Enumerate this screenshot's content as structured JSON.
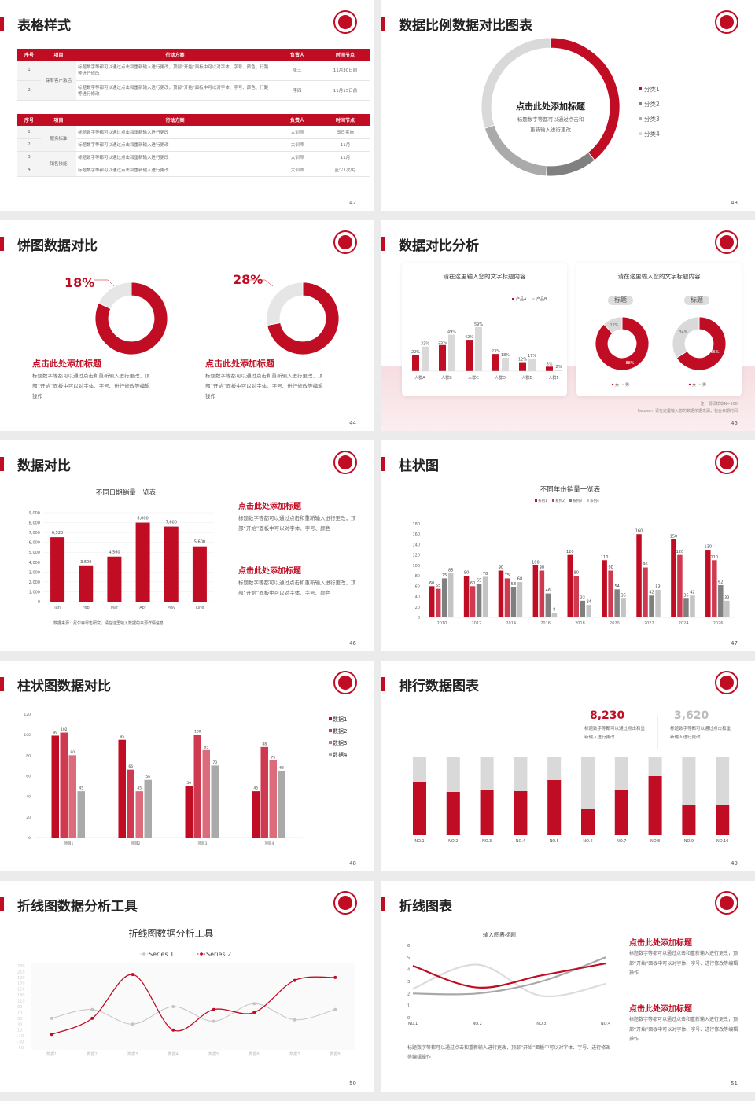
{
  "colors": {
    "accent": "#c00d23",
    "red2": "#d03a50",
    "red3": "#dc6c7b",
    "gray_dark": "#808080",
    "gray": "#aaaaaa",
    "gray_light": "#d9d9d9"
  },
  "logo_icon": "circular-seal-logo",
  "s42": {
    "title": "表格样式",
    "page": "42",
    "headers": [
      "序号",
      "项目",
      "行动方案",
      "负责人",
      "时间节点"
    ],
    "t1": {
      "group": "保有客户激活",
      "rows": [
        [
          "1",
          "标题数字等都可以通过点击和重新输入进行更改，顶部“开始”面板中可以对字体、字号、颜色、行距等进行修改",
          "张三",
          "11月30日前"
        ],
        [
          "2",
          "标题数字等都可以通过点击和重新输入进行更改，顶部“开始”面板中可以对字体、字号、颜色、行距等进行修改",
          "李四",
          "11月15日前"
        ]
      ]
    },
    "t2": {
      "groups": [
        "服务标准",
        "销售技能"
      ],
      "rows": [
        [
          "1",
          "标题数字等都可以通过点击和重新输入进行更改",
          "大训师",
          "即日实施"
        ],
        [
          "2",
          "标题数字等都可以通过点击和重新输入进行更改",
          "大训师",
          "11月"
        ],
        [
          "3",
          "标题数字等都可以通过点击和重新输入进行更改",
          "大训师",
          "11月"
        ],
        [
          "4",
          "标题数字等都可以通过点击和重新输入进行更改",
          "大训师",
          "至少1次/月"
        ]
      ]
    }
  },
  "s43": {
    "title": "数据比例数据对比图表",
    "page": "43",
    "center_title": "点击此处添加标题",
    "center_text1": "标题数字等都可以通过点击和",
    "center_text2": "重新输入进行更改",
    "chart_data": {
      "type": "pie",
      "donut": true,
      "categories": [
        "分类1",
        "分类2",
        "分类3",
        "分类4"
      ],
      "values": [
        39,
        12,
        19,
        30
      ],
      "colors": [
        "#c00d23",
        "#808080",
        "#aaaaaa",
        "#d9d9d9"
      ]
    }
  },
  "s44": {
    "title": "饼图数据对比",
    "page": "44",
    "items": [
      {
        "pct_label": "18%",
        "heading": "点击此处添加标题",
        "text": "标题数字等都可以通过点击和重新输入进行更改，顶部“开始”面板中可以对字体、字号、进行修改等编辑操作"
      },
      {
        "pct_label": "28%",
        "heading": "点击此处添加标题",
        "text": "标题数字等都可以通过点击和重新输入进行更改，顶部“开始”面板中可以对字体、字号、进行修改等编辑操作"
      }
    ],
    "chart_data": [
      {
        "type": "pie",
        "donut": true,
        "values": [
          18,
          82
        ]
      },
      {
        "type": "pie",
        "donut": true,
        "values": [
          28,
          72
        ]
      }
    ]
  },
  "s45": {
    "title": "数据对比分析",
    "page": "45",
    "card1_title": "请在这里输入您的文字标题内容",
    "card2_title": "请在这里输入您的文字标题内容",
    "pill1": "标题",
    "pill2": "标题",
    "note": "注：调研样本N=500",
    "source": "Source：请在这里输入您的数据依据来源，包含日期时间",
    "chart_data": [
      {
        "type": "bar",
        "categories": [
          "人群A",
          "人群B",
          "人群C",
          "人群D",
          "人群E",
          "人群F"
        ],
        "series": [
          {
            "name": "产品A",
            "values": [
              22,
              35,
              42,
              23,
              12,
              6
            ]
          },
          {
            "name": "产品B",
            "values": [
              33,
              49,
              59,
              18,
              17,
              2
            ]
          }
        ],
        "unit": "%"
      },
      {
        "type": "pie",
        "donut": true,
        "categories": [
          "女",
          "男"
        ],
        "values": [
          88,
          12
        ]
      },
      {
        "type": "pie",
        "donut": true,
        "categories": [
          "女",
          "男"
        ],
        "values": [
          66,
          34
        ]
      }
    ]
  },
  "s46": {
    "title": "数据对比",
    "page": "46",
    "source": "数据来源：尼尔森零售研究，请在这里输入数据的来源详情信息",
    "blocks": [
      {
        "heading": "点击此处添加标题",
        "text": "标题数字等都可以通过点击和重新输入进行更改，顶部“开始”面板中可以对字体、字号、颜色"
      },
      {
        "heading": "点击此处添加标题",
        "text": "标题数字等都可以通过点击和重新输入进行更改，顶部“开始”面板中可以对字体、字号、颜色"
      }
    ],
    "chart_data": {
      "type": "bar",
      "title": "不同日期销量一览表",
      "categories": [
        "Jan",
        "Feb",
        "Mar",
        "Apr",
        "May",
        "June"
      ],
      "values": [
        6520,
        3600,
        4560,
        8000,
        7600,
        5600
      ],
      "labels": [
        "6,520",
        "3,600",
        "4,560",
        "8,000",
        "7,600",
        "5,600"
      ],
      "ylim": [
        0,
        9000
      ],
      "yticks": [
        "0",
        "1,000",
        "2,000",
        "3,000",
        "4,000",
        "5,000",
        "6,000",
        "7,000",
        "8,000",
        "9,000"
      ],
      "grid": true
    }
  },
  "s47": {
    "title": "柱状图",
    "page": "47",
    "chart_data": {
      "type": "bar",
      "title": "不同年份销量一览表",
      "categories": [
        "2010",
        "2012",
        "2014",
        "2016",
        "2018",
        "2020",
        "2022",
        "2024",
        "2026"
      ],
      "series": [
        {
          "name": "系列1",
          "values": [
            60,
            80,
            90,
            100,
            120,
            110,
            160,
            150,
            130
          ]
        },
        {
          "name": "系列2",
          "values": [
            55,
            60,
            75,
            90,
            80,
            90,
            96,
            120,
            110
          ]
        },
        {
          "name": "系列3",
          "values": [
            75,
            65,
            58,
            46,
            32,
            54,
            42,
            36,
            62
          ]
        },
        {
          "name": "系列4",
          "values": [
            85,
            78,
            68,
            9,
            24,
            36,
            53,
            42,
            32
          ]
        }
      ],
      "ylim": [
        0,
        180
      ],
      "yticks": [
        "0",
        "20",
        "40",
        "60",
        "80",
        "100",
        "120",
        "140",
        "160",
        "180"
      ],
      "legend": "top"
    }
  },
  "s48": {
    "title": "柱状图数据对比",
    "page": "48",
    "chart_data": {
      "type": "bar",
      "categories": [
        "项目1",
        "项目2",
        "项目3",
        "项目4"
      ],
      "series": [
        {
          "name": "数据1",
          "values": [
            99,
            95,
            50,
            45
          ]
        },
        {
          "name": "数据2",
          "values": [
            102,
            66,
            100,
            88
          ]
        },
        {
          "name": "数据3",
          "values": [
            80,
            45,
            85,
            75
          ]
        },
        {
          "name": "数据4",
          "values": [
            45,
            56,
            70,
            65
          ]
        }
      ],
      "ylim": [
        0,
        120
      ],
      "yticks": [
        "0",
        "20",
        "40",
        "60",
        "80",
        "100",
        "120"
      ],
      "legend": "right"
    }
  },
  "s49": {
    "title": "排行数据图表",
    "page": "49",
    "stat1": {
      "value": "8,230",
      "text": "标题数字等都可以通过点击和重新输入进行更改"
    },
    "stat2": {
      "value": "3,620",
      "text": "标题数字等都可以通过点击和重新输入进行更改"
    },
    "chart_data": {
      "type": "bar",
      "stacked": true,
      "categories": [
        "NO.1",
        "NO.2",
        "NO.3",
        "NO.4",
        "NO.5",
        "NO.6",
        "NO.7",
        "NO.8",
        "NO.9",
        "NO.10"
      ],
      "values": [
        0.68,
        0.55,
        0.57,
        0.56,
        0.7,
        0.33,
        0.57,
        0.75,
        0.39,
        0.39
      ]
    }
  },
  "s50": {
    "title": "折线图数据分析工具",
    "page": "50",
    "chart_data": {
      "type": "line",
      "title": "折线图数据分析工具",
      "categories": [
        "数据1",
        "数据2",
        "数据3",
        "数据4",
        "数据5",
        "数据6",
        "数据7",
        "数据8"
      ],
      "series": [
        {
          "name": "Series 1",
          "values": [
            50,
            80,
            30,
            90,
            40,
            100,
            45,
            80
          ]
        },
        {
          "name": "Series 2",
          "values": [
            -5,
            50,
            200,
            10,
            80,
            70,
            180,
            190
          ]
        }
      ],
      "ylim": [
        -50,
        230
      ],
      "yticks": [
        "-50",
        "-30",
        "-10",
        "10",
        "30",
        "50",
        "70",
        "90",
        "110",
        "130",
        "150",
        "170",
        "190",
        "210",
        "230"
      ],
      "legend": "top"
    }
  },
  "s51": {
    "title": "折线图表",
    "page": "51",
    "footer": "标题数字等都可以通过点击和重新输入进行更改，顶部“开始”面板中可以对字体、字号、进行修改等编辑操作",
    "blocks": [
      {
        "heading": "点击此处添加标题",
        "text": "标题数字等都可以通过点击和重新输入进行更改，顶部“开始”面板中可以对字体、字号、进行修改等编辑操作"
      },
      {
        "heading": "点击此处添加标题",
        "text": "标题数字等都可以通过点击和重新输入进行更改，顶部“开始”面板中可以对字体、字号、进行修改等编辑操作"
      }
    ],
    "chart_data": {
      "type": "line",
      "title": "输入图表标题",
      "categories": [
        "NO.1",
        "NO.2",
        "NO.3",
        "NO.4"
      ],
      "series": [
        {
          "values": [
            4.3,
            2.5,
            3.5,
            4.5
          ]
        },
        {
          "values": [
            2,
            2,
            3,
            5
          ]
        },
        {
          "values": [
            2.4,
            4.4,
            1.8,
            2.8
          ]
        }
      ],
      "ylim": [
        0,
        6
      ],
      "yticks": [
        "0",
        "1",
        "2",
        "3",
        "4",
        "5",
        "6"
      ]
    }
  }
}
